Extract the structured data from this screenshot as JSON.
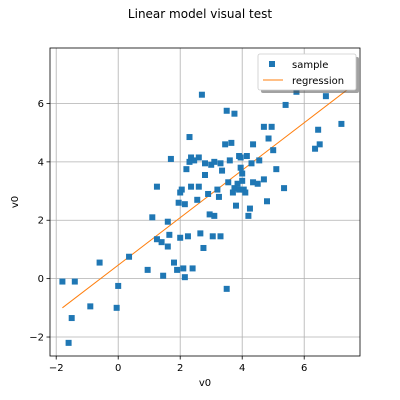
{
  "chart_data": {
    "type": "scatter",
    "title": "Linear model visual test",
    "xlabel": "v0",
    "ylabel": "v0",
    "xlim": [
      -2.2,
      7.8
    ],
    "ylim": [
      -2.65,
      7.9
    ],
    "xticks": [
      -2,
      0,
      2,
      4,
      6
    ],
    "yticks": [
      -2,
      0,
      2,
      4,
      6
    ],
    "grid": true,
    "legend": {
      "location": "top-right",
      "entries": [
        "sample",
        "regression"
      ]
    },
    "colors": {
      "sample": "#1f77b4",
      "regression": "#ff7f0e"
    },
    "series": [
      {
        "name": "sample",
        "marker": "square",
        "points": [
          [
            -1.8,
            -0.1
          ],
          [
            -1.4,
            -0.1
          ],
          [
            -1.6,
            -2.2
          ],
          [
            -1.5,
            -1.35
          ],
          [
            -0.9,
            -0.95
          ],
          [
            -0.6,
            0.55
          ],
          [
            0.0,
            -0.25
          ],
          [
            -0.05,
            -1.0
          ],
          [
            0.35,
            0.75
          ],
          [
            0.95,
            0.3
          ],
          [
            1.1,
            2.1
          ],
          [
            1.25,
            3.15
          ],
          [
            1.25,
            1.35
          ],
          [
            1.4,
            1.25
          ],
          [
            1.45,
            0.1
          ],
          [
            1.6,
            1.1
          ],
          [
            1.6,
            1.95
          ],
          [
            1.65,
            1.5
          ],
          [
            1.7,
            4.1
          ],
          [
            1.8,
            0.55
          ],
          [
            1.9,
            0.3
          ],
          [
            1.95,
            2.6
          ],
          [
            2.0,
            2.95
          ],
          [
            2.0,
            1.4
          ],
          [
            2.05,
            3.05
          ],
          [
            2.1,
            0.35
          ],
          [
            2.15,
            2.55
          ],
          [
            2.15,
            0.05
          ],
          [
            2.2,
            3.75
          ],
          [
            2.25,
            1.45
          ],
          [
            2.3,
            4.0
          ],
          [
            2.3,
            4.85
          ],
          [
            2.35,
            3.15
          ],
          [
            2.35,
            4.15
          ],
          [
            2.4,
            0.35
          ],
          [
            2.45,
            4.05
          ],
          [
            2.55,
            2.7
          ],
          [
            2.6,
            3.15
          ],
          [
            2.6,
            4.15
          ],
          [
            2.65,
            1.55
          ],
          [
            2.7,
            6.3
          ],
          [
            2.75,
            1.05
          ],
          [
            2.8,
            3.55
          ],
          [
            2.8,
            3.95
          ],
          [
            2.9,
            2.9
          ],
          [
            2.95,
            2.2
          ],
          [
            3.0,
            3.9
          ],
          [
            3.05,
            1.45
          ],
          [
            3.1,
            2.15
          ],
          [
            3.1,
            4.0
          ],
          [
            3.2,
            3.05
          ],
          [
            3.25,
            2.8
          ],
          [
            3.3,
            3.95
          ],
          [
            3.3,
            1.45
          ],
          [
            3.35,
            3.7
          ],
          [
            3.45,
            4.6
          ],
          [
            3.5,
            -0.35
          ],
          [
            3.5,
            5.75
          ],
          [
            3.55,
            3.3
          ],
          [
            3.6,
            4.05
          ],
          [
            3.65,
            4.65
          ],
          [
            3.7,
            2.95
          ],
          [
            3.75,
            3.1
          ],
          [
            3.75,
            5.65
          ],
          [
            3.8,
            2.5
          ],
          [
            3.85,
            3.25
          ],
          [
            3.9,
            3.05
          ],
          [
            3.9,
            4.2
          ],
          [
            3.95,
            3.8
          ],
          [
            3.95,
            4.15
          ],
          [
            4.0,
            3.6
          ],
          [
            4.0,
            3.35
          ],
          [
            4.05,
            3.05
          ],
          [
            4.1,
            2.95
          ],
          [
            4.15,
            4.2
          ],
          [
            4.2,
            2.15
          ],
          [
            4.25,
            2.4
          ],
          [
            4.3,
            3.95
          ],
          [
            4.35,
            3.3
          ],
          [
            4.35,
            4.6
          ],
          [
            4.5,
            3.25
          ],
          [
            4.55,
            4.05
          ],
          [
            4.7,
            5.2
          ],
          [
            4.7,
            3.4
          ],
          [
            4.8,
            2.65
          ],
          [
            4.85,
            4.8
          ],
          [
            4.95,
            5.2
          ],
          [
            5.0,
            4.4
          ],
          [
            5.1,
            3.75
          ],
          [
            5.35,
            3.1
          ],
          [
            5.4,
            5.95
          ],
          [
            5.75,
            6.4
          ],
          [
            6.35,
            4.45
          ],
          [
            6.45,
            5.1
          ],
          [
            6.5,
            4.6
          ],
          [
            6.7,
            6.25
          ],
          [
            7.2,
            5.3
          ]
        ]
      },
      {
        "name": "regression",
        "line": [
          [
            -1.8,
            -1.0
          ],
          [
            7.55,
            6.6
          ]
        ]
      }
    ]
  }
}
